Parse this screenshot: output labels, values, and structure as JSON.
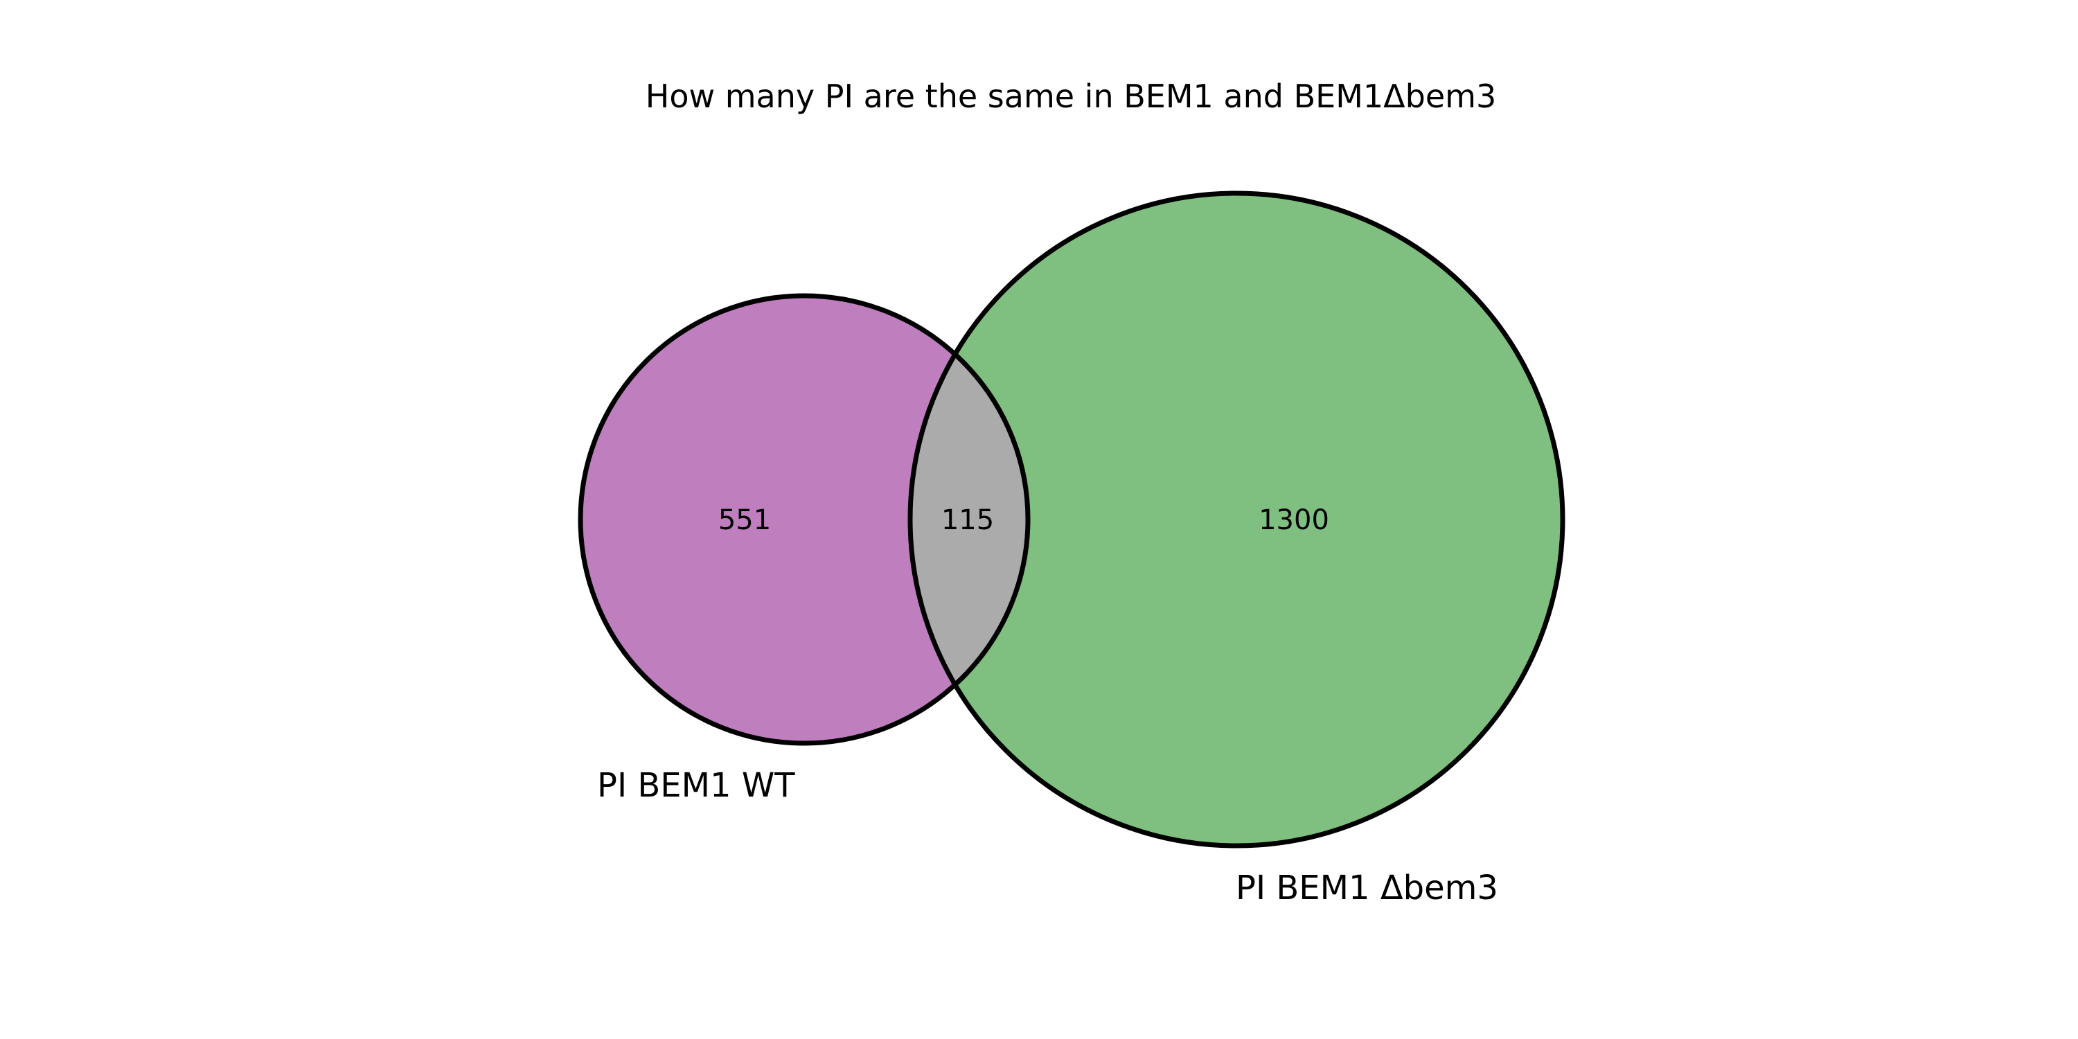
{
  "title": "How many PI are the same in BEM1 and BEM1Δbem3",
  "chart_data": {
    "type": "venn",
    "sets": [
      {
        "label": "PI BEM1 WT",
        "only_count": "551",
        "color": "#bf7fbf"
      },
      {
        "label": "PI BEM1 Δbem3",
        "only_count": "1300",
        "color": "#7fbf7f"
      }
    ],
    "intersection": {
      "count": "115",
      "color": "#ababab"
    },
    "outline_color": "#000000"
  }
}
